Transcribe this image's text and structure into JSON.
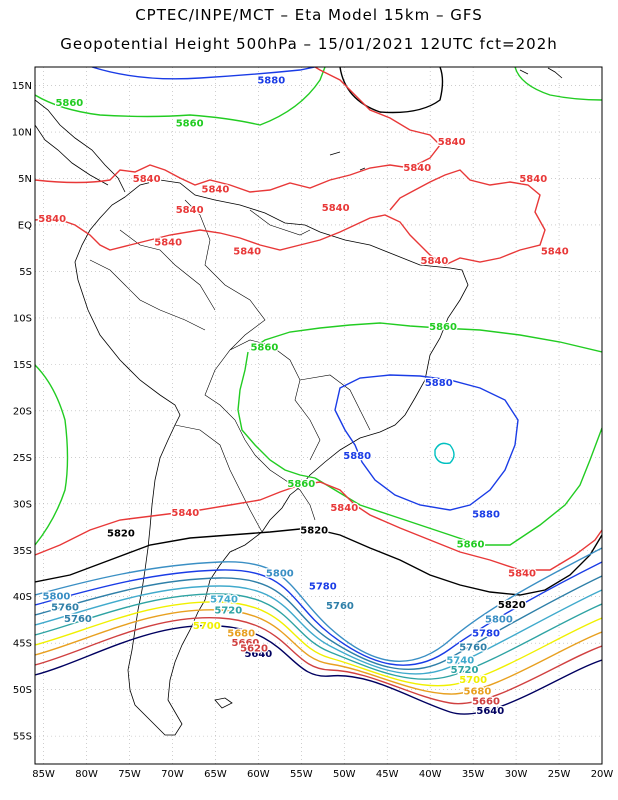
{
  "title_line1": "CPTEC/INPE/MCT – Eta Model 15km – GFS",
  "title_line2": "Geopotential Height 500hPa – 15/01/2021 12UTC fct=202h",
  "lat_labels": [
    "15N",
    "10N",
    "5N",
    "EQ",
    "5S",
    "10S",
    "15S",
    "20S",
    "25S",
    "30S",
    "35S",
    "40S",
    "45S",
    "50S",
    "55S"
  ],
  "lon_labels": [
    "85W",
    "80W",
    "75W",
    "70W",
    "65W",
    "60W",
    "55W",
    "50W",
    "45W",
    "40W",
    "35W",
    "30W",
    "25W",
    "20W"
  ],
  "map_bounds": {
    "lon_min": -86,
    "lon_max": -20,
    "lat_min": -58,
    "lat_max": 17
  },
  "colors": {
    "c5880": "#1a3ce6",
    "c5860": "#22cc22",
    "c5840": "#e83838",
    "c5820": "#000000",
    "c5800": "#3a8fc4",
    "c5780": "#1a3ce6",
    "c5760": "#2e7fa8",
    "c5740": "#40aacc",
    "c5720": "#2ea3a3",
    "c5700": "#f0f000",
    "c5680": "#e8a020",
    "c5660": "#d04040",
    "c5640": "#000060",
    "c5900": "#00c0c0",
    "coast": "#000000",
    "grid": "#b0b0b0"
  },
  "contour_labels": [
    {
      "text": "5880",
      "color": "c5880",
      "lon": -58.5,
      "lat": 15.2
    },
    {
      "text": "5860",
      "color": "c5860",
      "lon": -82,
      "lat": 12.8
    },
    {
      "text": "5860",
      "color": "c5860",
      "lon": -68,
      "lat": 10.6
    },
    {
      "text": "5840",
      "color": "c5840",
      "lon": -37.5,
      "lat": 8.6
    },
    {
      "text": "5840",
      "color": "c5840",
      "lon": -41.5,
      "lat": 5.8
    },
    {
      "text": "5840",
      "color": "c5840",
      "lon": -73,
      "lat": 4.6
    },
    {
      "text": "5840",
      "color": "c5840",
      "lon": -65,
      "lat": 3.5
    },
    {
      "text": "5840",
      "color": "c5840",
      "lon": -28,
      "lat": 4.6
    },
    {
      "text": "5840",
      "color": "c5840",
      "lon": -51,
      "lat": 1.5
    },
    {
      "text": "5840",
      "color": "c5840",
      "lon": -68,
      "lat": 1.3
    },
    {
      "text": "5840",
      "color": "c5840",
      "lon": -84,
      "lat": 0.3
    },
    {
      "text": "5840",
      "color": "c5840",
      "lon": -70.5,
      "lat": -2.2
    },
    {
      "text": "5840",
      "color": "c5840",
      "lon": -61.3,
      "lat": -3.2
    },
    {
      "text": "5840",
      "color": "c5840",
      "lon": -25.5,
      "lat": -3.2
    },
    {
      "text": "5840",
      "color": "c5840",
      "lon": -39.5,
      "lat": -4.2
    },
    {
      "text": "5860",
      "color": "c5860",
      "lon": -38.5,
      "lat": -11.3
    },
    {
      "text": "5860",
      "color": "c5860",
      "lon": -59.3,
      "lat": -13.5
    },
    {
      "text": "5880",
      "color": "c5880",
      "lon": -39,
      "lat": -17.3
    },
    {
      "text": "5880",
      "color": "c5880",
      "lon": -48.5,
      "lat": -25.2
    },
    {
      "text": "5860",
      "color": "c5860",
      "lon": -55,
      "lat": -28.2
    },
    {
      "text": "5840",
      "color": "c5840",
      "lon": -50,
      "lat": -30.8
    },
    {
      "text": "5880",
      "color": "c5880",
      "lon": -33.5,
      "lat": -31.5
    },
    {
      "text": "5840",
      "color": "c5840",
      "lon": -68.5,
      "lat": -31.3
    },
    {
      "text": "5820",
      "color": "c5820",
      "lon": -53.5,
      "lat": -33.2
    },
    {
      "text": "5820",
      "color": "c5820",
      "lon": -76,
      "lat": -33.5
    },
    {
      "text": "5860",
      "color": "c5860",
      "lon": -35.3,
      "lat": -34.7
    },
    {
      "text": "5840",
      "color": "c5840",
      "lon": -29.3,
      "lat": -37.8
    },
    {
      "text": "5800",
      "color": "c5800",
      "lon": -57.5,
      "lat": -37.8
    },
    {
      "text": "5780",
      "color": "c5780",
      "lon": -52.5,
      "lat": -39.2
    },
    {
      "text": "5800",
      "color": "c5800",
      "lon": -83.5,
      "lat": -40.3
    },
    {
      "text": "5760",
      "color": "c5760",
      "lon": -82.5,
      "lat": -41.5
    },
    {
      "text": "5760",
      "color": "c5760",
      "lon": -81,
      "lat": -42.7
    },
    {
      "text": "5740",
      "color": "c5740",
      "lon": -64,
      "lat": -40.6
    },
    {
      "text": "5720",
      "color": "c5720",
      "lon": -63.5,
      "lat": -41.8
    },
    {
      "text": "5760",
      "color": "c5760",
      "lon": -50.5,
      "lat": -41.3
    },
    {
      "text": "5820",
      "color": "c5820",
      "lon": -30.5,
      "lat": -41.2
    },
    {
      "text": "5800",
      "color": "c5800",
      "lon": -32,
      "lat": -42.8
    },
    {
      "text": "5780",
      "color": "c5780",
      "lon": -33.5,
      "lat": -44.3
    },
    {
      "text": "5760",
      "color": "c5760",
      "lon": -35,
      "lat": -45.8
    },
    {
      "text": "5740",
      "color": "c5740",
      "lon": -36.5,
      "lat": -47.2
    },
    {
      "text": "5720",
      "color": "c5720",
      "lon": -36,
      "lat": -48.2
    },
    {
      "text": "5700",
      "color": "c5700",
      "lon": -35,
      "lat": -49.3
    },
    {
      "text": "5680",
      "color": "c5680",
      "lon": -34.5,
      "lat": -50.5
    },
    {
      "text": "5660",
      "color": "c5660",
      "lon": -33.5,
      "lat": -51.6
    },
    {
      "text": "5640",
      "color": "c5640",
      "lon": -33,
      "lat": -52.6
    },
    {
      "text": "5700",
      "color": "c5700",
      "lon": -66,
      "lat": -43.5
    },
    {
      "text": "5680",
      "color": "c5680",
      "lon": -62,
      "lat": -44.3
    },
    {
      "text": "5660",
      "color": "c5660",
      "lon": -61.5,
      "lat": -45.3
    },
    {
      "text": "5640",
      "color": "c5640",
      "lon": -60,
      "lat": -46.5
    },
    {
      "text": "5620",
      "color": "c5660",
      "lon": -60.5,
      "lat": -45.9
    }
  ]
}
